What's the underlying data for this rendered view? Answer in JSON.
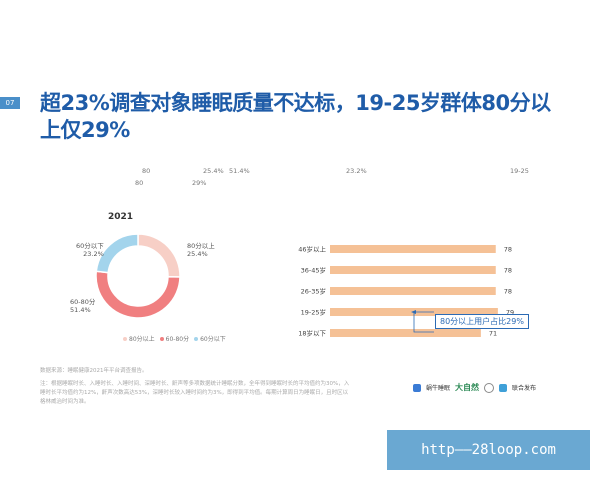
{
  "page_number": "07",
  "headline": "超23%调查对象睡眠质量不达标，19-25岁群体80分以上仅29%",
  "faint_labels": {
    "a": "80",
    "b": "25.4%",
    "c": "51.4%",
    "d": "23.2%",
    "e": "19-25",
    "f": "80",
    "g": "29%"
  },
  "colors": {
    "brand_blue": "#1f5ca8",
    "above_80": "#f7cfc6",
    "range_60_80": "#f07f80",
    "below_60": "#a3d4ec",
    "bar": "#f5c196"
  },
  "chart_data": [
    {
      "type": "pie",
      "title": "2021",
      "labels": [
        "80分以上",
        "60-80分",
        "60分以下"
      ],
      "values": [
        25.4,
        51.4,
        23.2
      ],
      "value_labels": [
        "25.4%",
        "51.4%",
        "23.2%"
      ],
      "legend": [
        "80分以上",
        "60-80分",
        "60分以下"
      ],
      "legend_placement": "bottom"
    },
    {
      "type": "bar",
      "orientation": "horizontal",
      "categories": [
        "46岁以上",
        "36-45岁",
        "26-35岁",
        "19-25岁",
        "18岁以下"
      ],
      "values": [
        78,
        78,
        78,
        79,
        71
      ],
      "annotation": "80分以上用户占比29%",
      "annotation_category": "19-25岁"
    }
  ],
  "source": "数据来源：睡眠健康2021年平台调查报告。",
  "note": "注：根据睡眠时长、入睡时长、入睡时间、深睡时长、鼾声等多项数据统计睡眠分数，全年得到睡眠时长的平均值约为30%，入睡时长平均值约为12%，鼾声次数高达53%，深睡时长较入睡时间约为3%，即得到平均值。每期计算周日为睡眠日，且时区以格林威治时间为准。",
  "logos": {
    "a": "蜗牛睡眠",
    "b": "大自然",
    "c": "联合发布"
  },
  "watermark": "http——28loop.com"
}
